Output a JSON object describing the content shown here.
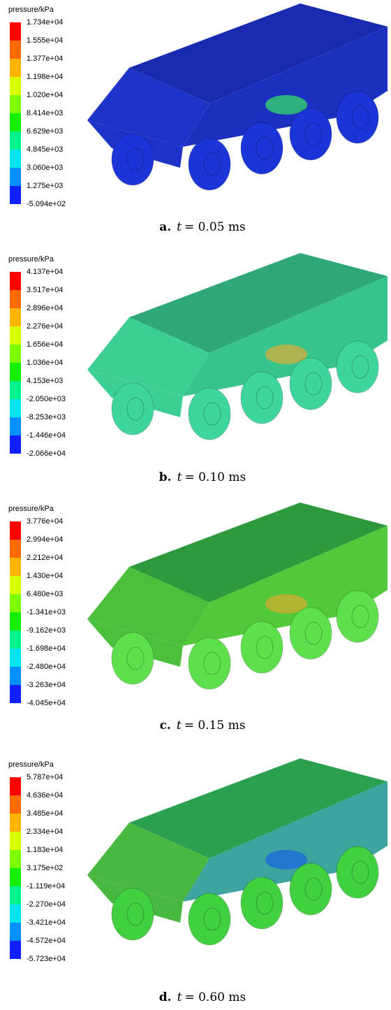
{
  "panels": [
    {
      "legend_title": "pressure/kPa",
      "legend_labels": [
        "1.734e+04",
        "1.555e+04",
        "1.377e+04",
        "1.198e+04",
        "1.020e+04",
        "8.414e+03",
        "6.629e+03",
        "4.845e+03",
        "3.060e+03",
        "1.275e+03",
        "-5.094e+02"
      ],
      "caption": {
        "label": "a.",
        "variable": "t",
        "value": "= 0.05  ms"
      }
    },
    {
      "legend_title": "pressure/kPa",
      "legend_labels": [
        "4.137e+04",
        "3.517e+04",
        "2.896e+04",
        "2.276e+04",
        "1.656e+04",
        "1.036e+04",
        "4.153e+03",
        "-2.050e+03",
        "-8.253e+03",
        "-1.446e+04",
        "-2.066e+04"
      ],
      "caption": {
        "label": "b.",
        "variable": "t",
        "value": "= 0.10  ms"
      }
    },
    {
      "legend_title": "pressure/kPa",
      "legend_labels": [
        "3.776e+04",
        "2.994e+04",
        "2.212e+04",
        "1.430e+04",
        "6.480e+03",
        "-1.341e+03",
        "-9.162e+03",
        "-1.698e+04",
        "-2.480e+04",
        "-3.263e+04",
        "-4.045e+04"
      ],
      "caption": {
        "label": "c.",
        "variable": "t",
        "value": "= 0.15  ms"
      }
    },
    {
      "legend_title": "pressure/kPa",
      "legend_labels": [
        "5.787e+04",
        "4.636e+04",
        "3.485e+04",
        "2.334e+04",
        "1.183e+04",
        "3.175e+02",
        "-1.119e+04",
        "-2.270e+04",
        "-3.421e+04",
        "-4.572e+04",
        "-5.723e+04"
      ],
      "caption": {
        "label": "d.",
        "variable": "t",
        "value": "= 0.60  ms"
      }
    }
  ]
}
